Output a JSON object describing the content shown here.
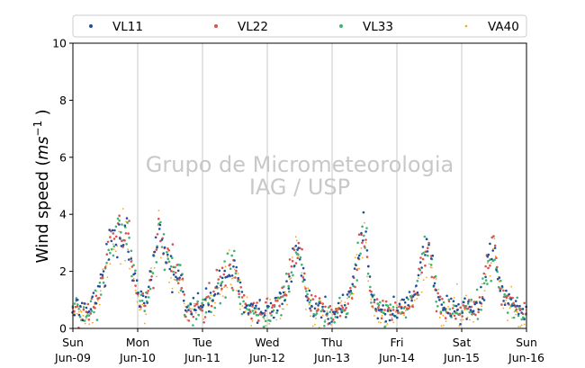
{
  "chart_data": {
    "type": "scatter",
    "title": "",
    "xlabel": "",
    "ylabel": "Wind speed (ms⁻¹ )",
    "ylabel_main": "Wind speed (",
    "ylabel_unit": "ms",
    "ylabel_exp": "−1",
    "ylabel_close": " )",
    "ylim": [
      0,
      10
    ],
    "yticks": [
      "0",
      "2",
      "4",
      "6",
      "8",
      "10"
    ],
    "xlim": [
      "2019-06-09",
      "2019-06-16"
    ],
    "xticks": [
      {
        "day": "Sun",
        "date": "Jun-09"
      },
      {
        "day": "Mon",
        "date": "Jun-10"
      },
      {
        "day": "Tue",
        "date": "Jun-11"
      },
      {
        "day": "Wed",
        "date": "Jun-12"
      },
      {
        "day": "Thu",
        "date": "Jun-13"
      },
      {
        "day": "Fri",
        "date": "Jun-14"
      },
      {
        "day": "Sat",
        "date": "Jun-15"
      },
      {
        "day": "Sun",
        "date": "Jun-16"
      }
    ],
    "vertical_grid": true,
    "legend_position": "top (outside)",
    "series": [
      {
        "name": "VL11",
        "color": "#1f4e9a"
      },
      {
        "name": "VL22",
        "color": "#d9534f"
      },
      {
        "name": "VL33",
        "color": "#3cb371"
      },
      {
        "name": "VA40",
        "color": "#f5a623"
      }
    ],
    "profile_hours": [
      0,
      6,
      10,
      14,
      20,
      24,
      27,
      30,
      32,
      34,
      36,
      40,
      42,
      48,
      54,
      58,
      60,
      64,
      66,
      72,
      78,
      82,
      84,
      86,
      88,
      90,
      96,
      102,
      106,
      108,
      110,
      112,
      114,
      120,
      126,
      130,
      132,
      134,
      136,
      138,
      144,
      150,
      154,
      156,
      158,
      162,
      168
    ],
    "profile_speed": [
      0.7,
      0.6,
      1.4,
      3.0,
      3.4,
      1.1,
      0.9,
      2.2,
      3.6,
      2.6,
      2.2,
      1.7,
      0.6,
      0.7,
      1.4,
      1.9,
      2.0,
      0.6,
      0.5,
      0.6,
      1.0,
      2.4,
      2.9,
      1.6,
      0.6,
      0.7,
      0.6,
      0.9,
      2.7,
      3.3,
      1.4,
      0.7,
      0.6,
      0.6,
      1.0,
      2.6,
      2.8,
      1.3,
      0.9,
      0.7,
      0.6,
      0.8,
      2.2,
      2.9,
      1.4,
      0.8,
      0.5
    ]
  },
  "watermark": {
    "line1": "Grupo de Micrometeorologia",
    "line2": "IAG / USP"
  }
}
